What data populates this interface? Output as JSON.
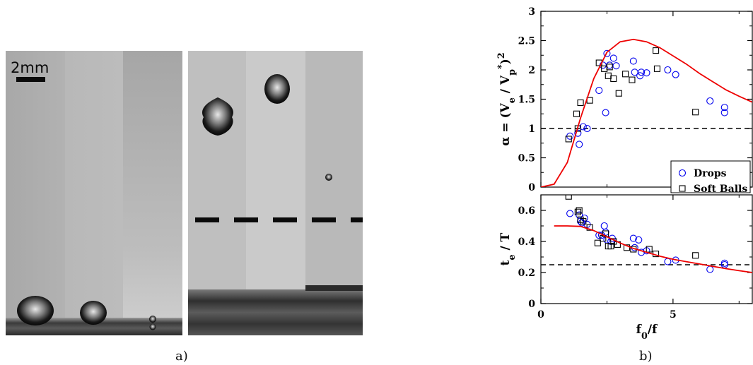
{
  "figure": {
    "panel_a_label": "a)",
    "panel_b_label": "b)",
    "scale_bar_label": "2mm"
  },
  "chart_data": [
    {
      "type": "scatter",
      "title": "",
      "xlabel": "",
      "ylabel": "α = (V_e / V_p^*)^2",
      "xlim": [
        0,
        8
      ],
      "ylim": [
        0,
        3
      ],
      "xticks": [
        0,
        5
      ],
      "yticks": [
        0,
        0.5,
        1,
        1.5,
        2,
        2.5,
        3
      ],
      "ytick_labels": [
        "0",
        "0.5",
        "1",
        "1.5",
        "2",
        "2.5",
        "3"
      ],
      "legend_position": "bottom-right",
      "reference_line": {
        "y": 1,
        "style": "dashed"
      },
      "series": [
        {
          "name": "Drops",
          "marker": "circle",
          "color": "#0000ee",
          "points": [
            [
              1.1,
              0.87
            ],
            [
              1.4,
              0.92
            ],
            [
              1.45,
              0.73
            ],
            [
              1.6,
              1.03
            ],
            [
              1.75,
              1.0
            ],
            [
              2.2,
              1.65
            ],
            [
              2.35,
              2.08
            ],
            [
              2.45,
              1.27
            ],
            [
              2.5,
              2.28
            ],
            [
              2.6,
              2.08
            ],
            [
              2.75,
              2.2
            ],
            [
              2.85,
              2.07
            ],
            [
              3.55,
              1.96
            ],
            [
              3.5,
              2.15
            ],
            [
              3.75,
              1.9
            ],
            [
              3.8,
              1.96
            ],
            [
              4.0,
              1.95
            ],
            [
              4.8,
              2.0
            ],
            [
              5.1,
              1.92
            ],
            [
              6.4,
              1.47
            ],
            [
              6.95,
              1.27
            ],
            [
              6.95,
              1.36
            ]
          ]
        },
        {
          "name": "Soft Balls",
          "marker": "square",
          "color": "#000000",
          "points": [
            [
              1.05,
              0.82
            ],
            [
              1.35,
              1.25
            ],
            [
              1.4,
              1.0
            ],
            [
              1.5,
              1.44
            ],
            [
              1.85,
              1.48
            ],
            [
              2.2,
              2.12
            ],
            [
              2.4,
              2.02
            ],
            [
              2.55,
              1.9
            ],
            [
              2.6,
              2.05
            ],
            [
              2.75,
              1.85
            ],
            [
              2.95,
              1.6
            ],
            [
              3.2,
              1.93
            ],
            [
              3.45,
              1.83
            ],
            [
              4.35,
              2.33
            ],
            [
              4.4,
              2.02
            ],
            [
              5.85,
              1.28
            ]
          ]
        },
        {
          "name": "",
          "type": "line",
          "color": "#ee0000",
          "points": [
            [
              0,
              0
            ],
            [
              0.5,
              0.05
            ],
            [
              1.0,
              0.42
            ],
            [
              1.5,
              1.18
            ],
            [
              2.0,
              1.85
            ],
            [
              2.5,
              2.3
            ],
            [
              3.0,
              2.48
            ],
            [
              3.5,
              2.52
            ],
            [
              4.0,
              2.48
            ],
            [
              4.5,
              2.38
            ],
            [
              5.0,
              2.24
            ],
            [
              5.5,
              2.1
            ],
            [
              6.0,
              1.94
            ],
            [
              6.5,
              1.8
            ],
            [
              7.0,
              1.66
            ],
            [
              7.5,
              1.55
            ],
            [
              8.0,
              1.45
            ]
          ]
        }
      ]
    },
    {
      "type": "scatter",
      "title": "",
      "xlabel": "f_0/f",
      "ylabel": "t_e / T",
      "xlim": [
        0,
        8
      ],
      "ylim": [
        0,
        0.7
      ],
      "xticks": [
        0,
        5
      ],
      "xtick_labels": [
        "0",
        "5"
      ],
      "yticks": [
        0,
        0.2,
        0.4,
        0.6
      ],
      "ytick_labels": [
        "0",
        "0.2",
        "0.4",
        "0.6"
      ],
      "reference_line": {
        "y": 0.25,
        "style": "dashed"
      },
      "series": [
        {
          "name": "Drops",
          "marker": "circle",
          "color": "#0000ee",
          "points": [
            [
              1.1,
              0.58
            ],
            [
              1.45,
              0.57
            ],
            [
              1.5,
              0.53
            ],
            [
              1.55,
              0.52
            ],
            [
              1.65,
              0.55
            ],
            [
              1.75,
              0.51
            ],
            [
              2.2,
              0.44
            ],
            [
              2.3,
              0.44
            ],
            [
              2.4,
              0.5
            ],
            [
              2.45,
              0.46
            ],
            [
              2.5,
              0.41
            ],
            [
              2.65,
              0.4
            ],
            [
              2.7,
              0.42
            ],
            [
              3.5,
              0.42
            ],
            [
              3.55,
              0.36
            ],
            [
              3.7,
              0.41
            ],
            [
              3.8,
              0.33
            ],
            [
              4.0,
              0.34
            ],
            [
              4.8,
              0.27
            ],
            [
              5.1,
              0.28
            ],
            [
              6.4,
              0.22
            ],
            [
              6.95,
              0.25
            ],
            [
              6.95,
              0.26
            ]
          ]
        },
        {
          "name": "Soft Balls",
          "marker": "square",
          "color": "#000000",
          "points": [
            [
              1.05,
              0.69
            ],
            [
              1.4,
              0.59
            ],
            [
              1.45,
              0.6
            ],
            [
              1.5,
              0.54
            ],
            [
              1.6,
              0.53
            ],
            [
              1.85,
              0.49
            ],
            [
              2.15,
              0.39
            ],
            [
              2.35,
              0.42
            ],
            [
              2.45,
              0.45
            ],
            [
              2.55,
              0.37
            ],
            [
              2.65,
              0.37
            ],
            [
              2.75,
              0.4
            ],
            [
              2.9,
              0.38
            ],
            [
              3.25,
              0.36
            ],
            [
              3.5,
              0.35
            ],
            [
              4.1,
              0.35
            ],
            [
              4.35,
              0.32
            ],
            [
              5.85,
              0.31
            ]
          ]
        },
        {
          "name": "",
          "type": "line",
          "color": "#ee0000",
          "points": [
            [
              0.5,
              0.5
            ],
            [
              1.0,
              0.5
            ],
            [
              1.5,
              0.497
            ],
            [
              2.0,
              0.47
            ],
            [
              2.5,
              0.43
            ],
            [
              3.0,
              0.39
            ],
            [
              3.5,
              0.355
            ],
            [
              4.0,
              0.33
            ],
            [
              4.5,
              0.305
            ],
            [
              5.0,
              0.285
            ],
            [
              5.5,
              0.27
            ],
            [
              6.0,
              0.255
            ],
            [
              6.5,
              0.24
            ],
            [
              7.0,
              0.225
            ],
            [
              7.5,
              0.212
            ],
            [
              8.0,
              0.2
            ]
          ]
        }
      ]
    }
  ]
}
